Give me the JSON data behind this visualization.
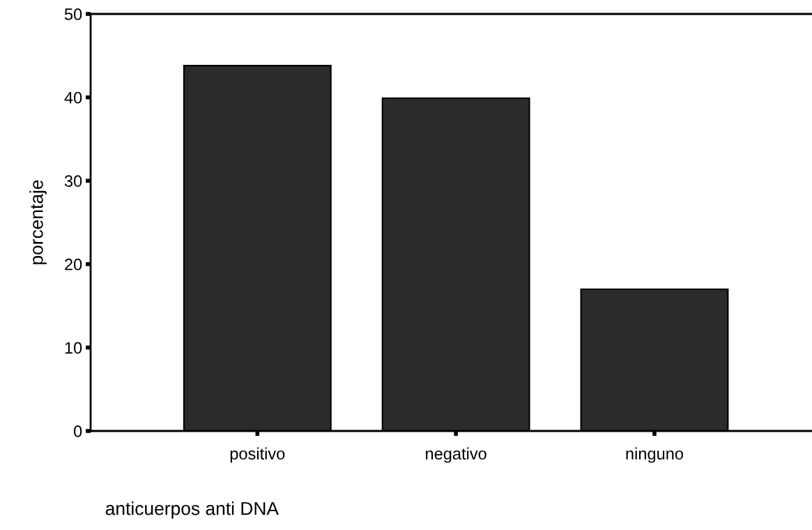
{
  "chart_data": {
    "type": "bar",
    "xlabel": "anticuerpos anti DNA",
    "ylabel": "porcentaje",
    "categories": [
      "positivo",
      "negativo",
      "ninguno"
    ],
    "values": [
      43.8,
      39.9,
      17.0
    ],
    "color": "#2b2b2b",
    "ylim": [
      0,
      50
    ],
    "yticks": [
      0,
      10,
      20,
      30,
      40,
      50
    ],
    "grid": false
  }
}
